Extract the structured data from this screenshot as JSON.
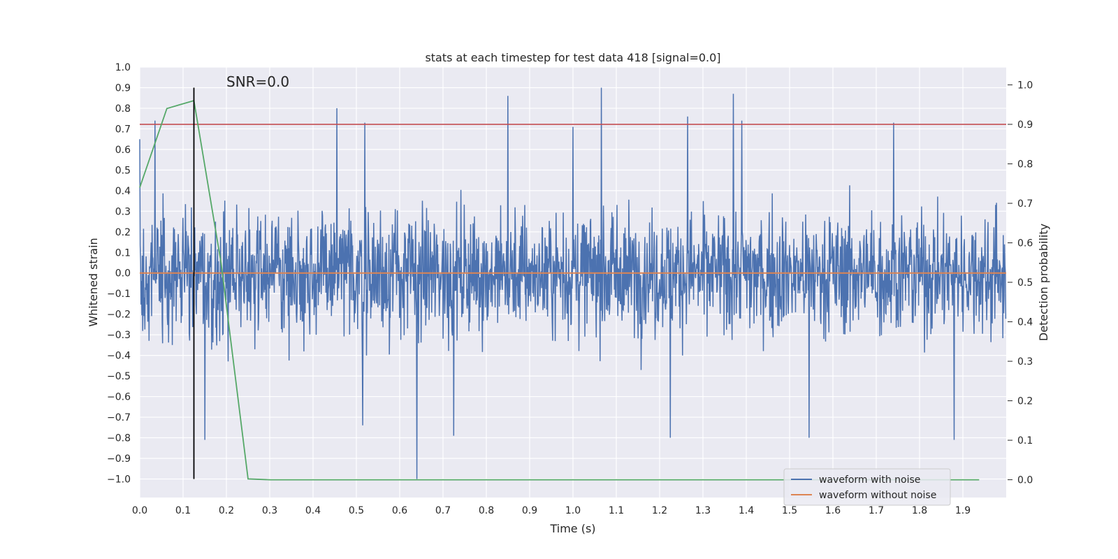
{
  "chart_data": {
    "type": "line",
    "title": "stats at each timestep for test data 418 [signal=0.0]",
    "xlabel": "Time (s)",
    "ylabel_left": "Whitened strain",
    "ylabel_right": "Detection probability",
    "xlim": [
      0.0,
      2.0
    ],
    "ylim_left": [
      -1.09,
      1.0
    ],
    "ylim_right": [
      -0.045,
      1.045
    ],
    "xticks": [
      "0.0",
      "0.1",
      "0.2",
      "0.3",
      "0.4",
      "0.5",
      "0.6",
      "0.7",
      "0.8",
      "0.9",
      "1.0",
      "1.1",
      "1.2",
      "1.3",
      "1.4",
      "1.5",
      "1.6",
      "1.7",
      "1.8",
      "1.9"
    ],
    "yticks_left": [
      "1.0",
      "0.9",
      "0.8",
      "0.7",
      "0.6",
      "0.5",
      "0.4",
      "0.3",
      "0.2",
      "0.1",
      "0.0",
      "−0.1",
      "−0.2",
      "−0.3",
      "−0.4",
      "−0.5",
      "−0.6",
      "−0.7",
      "−0.8",
      "−0.9",
      "−1.0"
    ],
    "yticks_right": [
      "1.0",
      "0.9",
      "0.8",
      "0.7",
      "0.6",
      "0.5",
      "0.4",
      "0.3",
      "0.2",
      "0.1",
      "0.0"
    ],
    "grid": true,
    "annotation": "SNR=0.0",
    "legend": {
      "position": "lower-right",
      "entries": [
        "waveform with noise",
        "waveform without noise"
      ]
    },
    "series": [
      {
        "name": "waveform with noise",
        "axis": "left",
        "color": "#4c72b0",
        "style": "noise",
        "n_points": 2048,
        "amplitude_range": [
          -1.0,
          0.9
        ],
        "peaks": [
          {
            "x": 0.0,
            "y": 0.65
          },
          {
            "x": 0.035,
            "y": 0.74
          },
          {
            "x": 0.455,
            "y": 0.8
          },
          {
            "x": 0.52,
            "y": 0.73
          },
          {
            "x": 0.85,
            "y": 0.86
          },
          {
            "x": 1.0,
            "y": 0.71
          },
          {
            "x": 1.065,
            "y": 0.9
          },
          {
            "x": 1.265,
            "y": 0.76
          },
          {
            "x": 1.37,
            "y": 0.87
          },
          {
            "x": 1.39,
            "y": 0.74
          },
          {
            "x": 1.74,
            "y": 0.73
          },
          {
            "x": 0.64,
            "y": -1.0
          },
          {
            "x": 0.725,
            "y": -0.79
          },
          {
            "x": 1.225,
            "y": -0.8
          },
          {
            "x": 1.545,
            "y": -0.8
          },
          {
            "x": 1.88,
            "y": -0.81
          },
          {
            "x": 0.15,
            "y": -0.81
          },
          {
            "x": 0.515,
            "y": -0.74
          }
        ]
      },
      {
        "name": "waveform without noise",
        "axis": "left",
        "color": "#dd8452",
        "x": [
          0.0,
          2.0
        ],
        "y": [
          0.0,
          0.0
        ]
      },
      {
        "name": "detection probability",
        "axis": "right",
        "color": "#55a868",
        "x": [
          0.0,
          0.0625,
          0.125,
          0.1875,
          0.25,
          0.3,
          0.4,
          1.0,
          1.9375
        ],
        "y": [
          0.74,
          0.94,
          0.96,
          0.55,
          0.002,
          0.0,
          0.0,
          0.0,
          0.0
        ]
      },
      {
        "name": "threshold",
        "axis": "right",
        "color": "#c44e52",
        "x": [
          0.0,
          2.0
        ],
        "y": [
          0.9,
          0.9
        ]
      },
      {
        "name": "detection marker",
        "axis": "left",
        "color": "#000000",
        "x": [
          0.125,
          0.125
        ],
        "y": [
          -1.0,
          0.9
        ]
      }
    ]
  }
}
